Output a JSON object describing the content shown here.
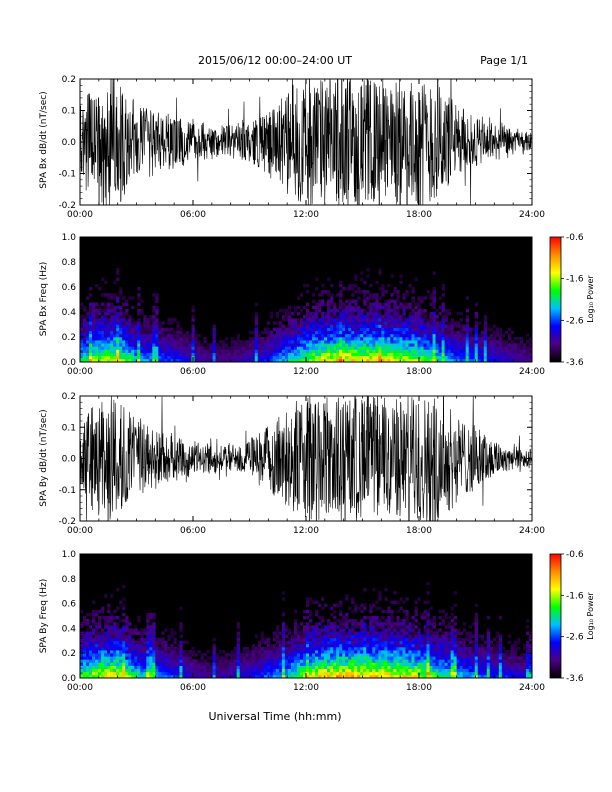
{
  "header": {
    "title": "2015/06/12  00:00–24:00 UT",
    "page": "Page 1/1"
  },
  "x_axis_title": "Universal Time (hh:mm)",
  "colors": {
    "trace": "#000000",
    "spectrogram_background": "#000000",
    "colormap": [
      "#000000",
      "#4b0082",
      "#0000ff",
      "#00bfff",
      "#00ff00",
      "#ffff00",
      "#ff8c00",
      "#ff0000"
    ]
  },
  "chart_data": [
    {
      "type": "line",
      "ylabel": "SPA Bx dB/dt (nT/sec)",
      "xlim": [
        "00:00",
        "24:00"
      ],
      "ylim": [
        -0.2,
        0.2
      ],
      "x_ticks": [
        "00:00",
        "06:00",
        "12:00",
        "18:00",
        "24:00"
      ],
      "y_ticks": [
        "-0.2",
        "-0.1",
        "0.0",
        "0.1",
        "0.2"
      ],
      "series": [
        {
          "x_hours": [
            0,
            1,
            2,
            3,
            4,
            5,
            6,
            7,
            8,
            9,
            10,
            11,
            12,
            13,
            14,
            15,
            16,
            17,
            18,
            19,
            20,
            21,
            22,
            23,
            24
          ],
          "amplitude": [
            0.12,
            0.2,
            0.2,
            0.12,
            0.1,
            0.08,
            0.06,
            0.05,
            0.05,
            0.07,
            0.1,
            0.16,
            0.2,
            0.2,
            0.2,
            0.2,
            0.2,
            0.2,
            0.2,
            0.2,
            0.12,
            0.08,
            0.06,
            0.04,
            0.03
          ]
        }
      ]
    },
    {
      "type": "heatmap",
      "ylabel": "SPA Bx Freq (Hz)",
      "xlim": [
        "00:00",
        "24:00"
      ],
      "ylim": [
        0.0,
        1.0
      ],
      "x_ticks": [
        "00:00",
        "06:00",
        "12:00",
        "18:00",
        "24:00"
      ],
      "y_ticks": [
        "0.0",
        "0.2",
        "0.4",
        "0.6",
        "0.8",
        "1.0"
      ],
      "colorbar": {
        "label": "Log₁₀ Power",
        "range": [
          -3.6,
          -0.6
        ],
        "ticks": [
          "-0.6",
          "-1.6",
          "-2.6",
          "-3.6"
        ]
      },
      "hourly_activity": [
        0.65,
        0.8,
        0.85,
        0.6,
        0.5,
        0.45,
        0.35,
        0.3,
        0.3,
        0.35,
        0.45,
        0.6,
        0.75,
        0.88,
        0.92,
        0.9,
        0.92,
        0.85,
        0.8,
        0.65,
        0.5,
        0.45,
        0.4,
        0.35,
        0.3
      ]
    },
    {
      "type": "line",
      "ylabel": "SPA By dB/dt (nT/sec)",
      "xlim": [
        "00:00",
        "24:00"
      ],
      "ylim": [
        -0.2,
        0.2
      ],
      "x_ticks": [
        "00:00",
        "06:00",
        "12:00",
        "18:00",
        "24:00"
      ],
      "y_ticks": [
        "-0.2",
        "-0.1",
        "0.0",
        "0.1",
        "0.2"
      ],
      "series": [
        {
          "x_hours": [
            0,
            1,
            2,
            3,
            4,
            5,
            6,
            7,
            8,
            9,
            10,
            11,
            12,
            13,
            14,
            15,
            16,
            17,
            18,
            19,
            20,
            21,
            22,
            23,
            24
          ],
          "amplitude": [
            0.1,
            0.2,
            0.2,
            0.12,
            0.1,
            0.07,
            0.05,
            0.04,
            0.04,
            0.06,
            0.1,
            0.16,
            0.2,
            0.2,
            0.2,
            0.2,
            0.2,
            0.2,
            0.2,
            0.2,
            0.14,
            0.1,
            0.06,
            0.04,
            0.03
          ]
        }
      ]
    },
    {
      "type": "heatmap",
      "ylabel": "SPA By Freq (Hz)",
      "xlim": [
        "00:00",
        "24:00"
      ],
      "ylim": [
        0.0,
        1.0
      ],
      "x_ticks": [
        "00:00",
        "06:00",
        "12:00",
        "18:00",
        "24:00"
      ],
      "y_ticks": [
        "0.0",
        "0.2",
        "0.4",
        "0.6",
        "0.8",
        "1.0"
      ],
      "colorbar": {
        "label": "Log₁₀ Power",
        "range": [
          -3.6,
          -0.6
        ],
        "ticks": [
          "-0.6",
          "-1.6",
          "-2.6",
          "-3.6"
        ]
      },
      "hourly_activity": [
        0.7,
        0.85,
        0.9,
        0.65,
        0.55,
        0.45,
        0.35,
        0.3,
        0.35,
        0.4,
        0.5,
        0.6,
        0.8,
        0.92,
        0.95,
        0.92,
        0.92,
        0.9,
        0.85,
        0.7,
        0.6,
        0.5,
        0.45,
        0.4,
        0.35
      ]
    }
  ]
}
